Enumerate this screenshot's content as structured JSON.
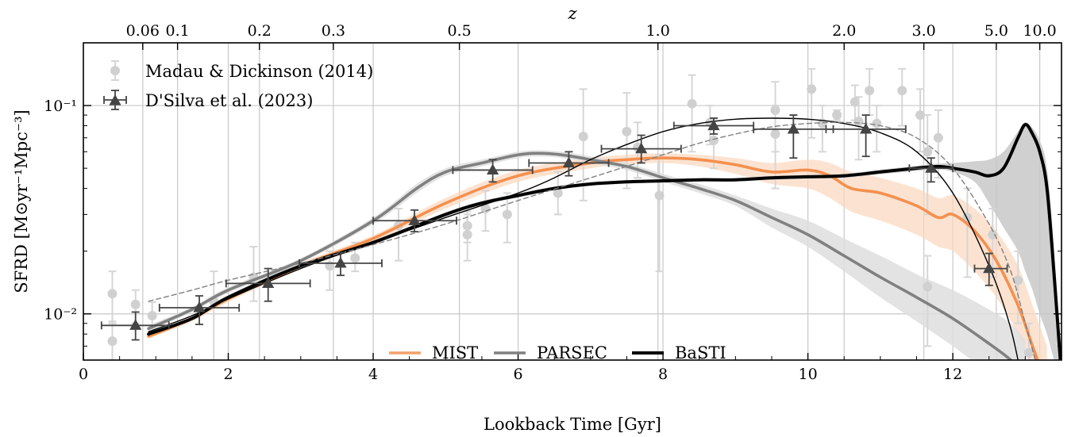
{
  "chart_data": {
    "type": "line",
    "xlabel": "Lookback Time [Gyr]",
    "ylabel": "SFRD [M⊙yr⁻¹Mpc⁻³]",
    "top_axis_label": "z",
    "xlim": [
      0,
      13.5
    ],
    "ylim": [
      0.006,
      0.2
    ],
    "yscale": "log",
    "grid": true,
    "x_ticks": [
      0,
      2,
      4,
      6,
      8,
      10,
      12
    ],
    "x_tick_labels": [
      "0",
      "2",
      "4",
      "6",
      "8",
      "10",
      "12"
    ],
    "y_ticks": [
      0.01,
      0.1
    ],
    "y_tick_labels": [
      "10⁻²",
      "10⁻¹"
    ],
    "top_ticks": [
      {
        "label": "0.06",
        "t": 0.82
      },
      {
        "label": "0.1",
        "t": 1.3
      },
      {
        "label": "0.2",
        "t": 2.43
      },
      {
        "label": "0.3",
        "t": 3.45
      },
      {
        "label": "0.5",
        "t": 5.19
      },
      {
        "label": "1.0",
        "t": 7.93
      },
      {
        "label": "2.0",
        "t": 10.5
      },
      {
        "label": "3.0",
        "t": 11.6
      },
      {
        "label": "5.0",
        "t": 12.6
      },
      {
        "label": "10.0",
        "t": 13.2
      }
    ],
    "legend_top": {
      "position": "top-left",
      "entries": [
        {
          "label": "Madau & Dickinson (2014)",
          "marker": "circle",
          "color": "#d0d0d0"
        },
        {
          "label": "D'Silva et al. (2023)",
          "marker": "triangle",
          "color": "#444444"
        }
      ]
    },
    "legend_bottom": {
      "position": "bottom-center",
      "entries": [
        {
          "label": "MIST",
          "color": "#f4a06a"
        },
        {
          "label": "PARSEC",
          "color": "#808080"
        },
        {
          "label": "BaSTI",
          "color": "#000000"
        }
      ]
    },
    "series": [
      {
        "name": "MIST",
        "color": "#f4904f",
        "band_color": "#fbd7bd",
        "x": [
          0.9,
          1.5,
          2.0,
          3.0,
          4.0,
          5.0,
          6.0,
          7.0,
          7.5,
          8.0,
          8.5,
          9.0,
          9.5,
          10.0,
          10.3,
          10.6,
          11.0,
          11.5,
          11.8,
          12.0,
          12.3,
          12.6,
          12.9,
          13.1,
          13.3
        ],
        "y": [
          0.0078,
          0.0095,
          0.0118,
          0.017,
          0.023,
          0.034,
          0.046,
          0.053,
          0.055,
          0.056,
          0.055,
          0.052,
          0.048,
          0.049,
          0.046,
          0.04,
          0.038,
          0.033,
          0.029,
          0.03,
          0.025,
          0.018,
          0.011,
          0.007,
          0.0045
        ],
        "band_lower": [
          0.0076,
          0.0092,
          0.0114,
          0.0164,
          0.0222,
          0.032,
          0.043,
          0.05,
          0.052,
          0.053,
          0.051,
          0.047,
          0.042,
          0.04,
          0.036,
          0.031,
          0.028,
          0.024,
          0.021,
          0.02,
          0.016,
          0.012,
          0.008,
          0.0055,
          0.004
        ],
        "band_upper": [
          0.0081,
          0.0098,
          0.0122,
          0.0176,
          0.0238,
          0.036,
          0.049,
          0.056,
          0.058,
          0.059,
          0.058,
          0.056,
          0.053,
          0.055,
          0.053,
          0.048,
          0.045,
          0.04,
          0.036,
          0.037,
          0.032,
          0.025,
          0.017,
          0.011,
          0.007
        ]
      },
      {
        "name": "PARSEC",
        "color": "#808080",
        "band_color": "#dedede",
        "x": [
          0.9,
          1.5,
          2.0,
          3.0,
          4.0,
          4.6,
          5.0,
          5.5,
          6.0,
          6.3,
          6.6,
          7.0,
          7.5,
          8.0,
          8.5,
          9.0,
          9.5,
          10.0,
          10.5,
          11.0,
          11.5,
          12.0,
          12.5,
          12.8,
          13.0
        ],
        "y": [
          0.0085,
          0.0105,
          0.013,
          0.018,
          0.028,
          0.04,
          0.048,
          0.053,
          0.058,
          0.059,
          0.058,
          0.055,
          0.051,
          0.045,
          0.04,
          0.035,
          0.029,
          0.024,
          0.019,
          0.015,
          0.012,
          0.0095,
          0.0072,
          0.006,
          0.005
        ],
        "band_lower": [
          0.0082,
          0.0102,
          0.0126,
          0.0175,
          0.027,
          0.038,
          0.046,
          0.051,
          0.056,
          0.057,
          0.056,
          0.053,
          0.049,
          0.043,
          0.038,
          0.033,
          0.026,
          0.021,
          0.016,
          0.012,
          0.0092,
          0.007,
          0.0052,
          0.0045,
          0.004
        ],
        "band_upper": [
          0.0088,
          0.0108,
          0.0134,
          0.0185,
          0.029,
          0.042,
          0.05,
          0.055,
          0.06,
          0.061,
          0.06,
          0.057,
          0.053,
          0.047,
          0.042,
          0.037,
          0.032,
          0.028,
          0.023,
          0.019,
          0.0155,
          0.013,
          0.0105,
          0.009,
          0.0075
        ]
      },
      {
        "name": "BaSTI",
        "color": "#000000",
        "band_color": "#c8c8c8",
        "x": [
          0.9,
          1.5,
          2.0,
          3.0,
          4.0,
          5.0,
          5.5,
          6.0,
          6.5,
          7.0,
          7.5,
          8.0,
          8.5,
          9.0,
          9.5,
          10.0,
          10.5,
          11.0,
          11.5,
          11.8,
          12.0,
          12.3,
          12.5,
          12.7,
          12.9,
          13.0,
          13.1,
          13.2,
          13.3,
          13.4,
          13.5
        ],
        "y": [
          0.008,
          0.0095,
          0.012,
          0.017,
          0.022,
          0.03,
          0.034,
          0.037,
          0.04,
          0.042,
          0.043,
          0.0435,
          0.044,
          0.044,
          0.045,
          0.0455,
          0.046,
          0.048,
          0.05,
          0.051,
          0.05,
          0.048,
          0.046,
          0.05,
          0.07,
          0.081,
          0.073,
          0.06,
          0.04,
          0.015,
          0.005
        ],
        "band_lower": [
          0.0078,
          0.0093,
          0.0117,
          0.0166,
          0.0215,
          0.0293,
          0.0332,
          0.0362,
          0.0392,
          0.0412,
          0.0422,
          0.0427,
          0.0432,
          0.0432,
          0.0441,
          0.0446,
          0.045,
          0.0468,
          0.0486,
          0.0494,
          0.048,
          0.043,
          0.034,
          0.026,
          0.02,
          0.016,
          0.013,
          0.01,
          0.008,
          0.006,
          0.005
        ],
        "band_upper": [
          0.0082,
          0.0097,
          0.0123,
          0.0174,
          0.0225,
          0.0307,
          0.0348,
          0.0378,
          0.0408,
          0.0428,
          0.0438,
          0.0443,
          0.0448,
          0.0448,
          0.0459,
          0.0464,
          0.047,
          0.0492,
          0.0514,
          0.0526,
          0.053,
          0.054,
          0.055,
          0.06,
          0.075,
          0.083,
          0.078,
          0.068,
          0.05,
          0.02,
          0.006
        ]
      },
      {
        "name": "",
        "style": "thin-solid",
        "color": "#000000",
        "x": [
          0.9,
          1.5,
          2.0,
          3.0,
          4.0,
          5.0,
          6.0,
          6.5,
          7.0,
          7.5,
          8.0,
          8.5,
          9.0,
          9.5,
          10.0,
          10.5,
          11.0,
          11.5,
          12.0,
          12.5,
          12.8,
          13.0
        ],
        "y": [
          0.0082,
          0.0098,
          0.0118,
          0.0165,
          0.022,
          0.029,
          0.038,
          0.045,
          0.055,
          0.065,
          0.075,
          0.082,
          0.086,
          0.087,
          0.086,
          0.082,
          0.074,
          0.06,
          0.038,
          0.017,
          0.0085,
          0.004
        ]
      },
      {
        "name": "",
        "style": "thin-dashed",
        "color": "#808080",
        "x": [
          0.9,
          1.5,
          2.0,
          3.0,
          4.0,
          5.0,
          6.0,
          7.0,
          8.0,
          8.5,
          9.0,
          9.5,
          10.0,
          10.5,
          11.0,
          11.5,
          12.0,
          12.5,
          12.8,
          13.0,
          13.2
        ],
        "y": [
          0.0115,
          0.013,
          0.0145,
          0.0175,
          0.0215,
          0.027,
          0.035,
          0.045,
          0.058,
          0.066,
          0.073,
          0.079,
          0.082,
          0.083,
          0.08,
          0.07,
          0.05,
          0.027,
          0.016,
          0.009,
          0.005
        ]
      }
    ],
    "scatter_md14": {
      "name": "Madau & Dickinson (2014)",
      "points": [
        {
          "x": 0.4,
          "y": 0.0125,
          "lo": 0.009,
          "hi": 0.016
        },
        {
          "x": 0.4,
          "y": 0.0074,
          "lo": 0.006,
          "hi": 0.0092
        },
        {
          "x": 0.72,
          "y": 0.0111,
          "lo": 0.009,
          "hi": 0.013
        },
        {
          "x": 0.95,
          "y": 0.0098,
          "lo": 0.0085,
          "hi": 0.0114
        },
        {
          "x": 1.8,
          "y": 0.0115,
          "lo": 0.006,
          "hi": 0.016
        },
        {
          "x": 2.35,
          "y": 0.015,
          "lo": 0.0115,
          "hi": 0.021
        },
        {
          "x": 3.4,
          "y": 0.017,
          "lo": 0.013,
          "hi": 0.02
        },
        {
          "x": 3.75,
          "y": 0.0185,
          "lo": 0.016,
          "hi": 0.022
        },
        {
          "x": 4.35,
          "y": 0.0265,
          "lo": 0.018,
          "hi": 0.032
        },
        {
          "x": 5.3,
          "y": 0.0265,
          "lo": 0.022,
          "hi": 0.031
        },
        {
          "x": 5.3,
          "y": 0.024,
          "lo": 0.018,
          "hi": 0.03
        },
        {
          "x": 5.55,
          "y": 0.032,
          "lo": 0.025,
          "hi": 0.039
        },
        {
          "x": 5.85,
          "y": 0.03,
          "lo": 0.022,
          "hi": 0.038
        },
        {
          "x": 6.55,
          "y": 0.038,
          "lo": 0.03,
          "hi": 0.048
        },
        {
          "x": 6.9,
          "y": 0.071,
          "lo": 0.035,
          "hi": 0.12
        },
        {
          "x": 7.5,
          "y": 0.075,
          "lo": 0.04,
          "hi": 0.115
        },
        {
          "x": 7.65,
          "y": 0.063,
          "lo": 0.045,
          "hi": 0.083
        },
        {
          "x": 7.95,
          "y": 0.037,
          "lo": 0.016,
          "hi": 0.058
        },
        {
          "x": 8.4,
          "y": 0.102,
          "lo": 0.06,
          "hi": 0.14
        },
        {
          "x": 8.65,
          "y": 0.083,
          "lo": 0.065,
          "hi": 0.1
        },
        {
          "x": 8.7,
          "y": 0.068,
          "lo": 0.05,
          "hi": 0.086
        },
        {
          "x": 9.55,
          "y": 0.095,
          "lo": 0.06,
          "hi": 0.13
        },
        {
          "x": 9.55,
          "y": 0.073,
          "lo": 0.04,
          "hi": 0.1
        },
        {
          "x": 10.05,
          "y": 0.12,
          "lo": 0.07,
          "hi": 0.15
        },
        {
          "x": 10.2,
          "y": 0.082,
          "lo": 0.06,
          "hi": 0.1
        },
        {
          "x": 10.4,
          "y": 0.09,
          "lo": 0.085,
          "hi": 0.095
        },
        {
          "x": 10.65,
          "y": 0.104,
          "lo": 0.085,
          "hi": 0.125
        },
        {
          "x": 10.7,
          "y": 0.084,
          "lo": 0.055,
          "hi": 0.11
        },
        {
          "x": 10.85,
          "y": 0.118,
          "lo": 0.09,
          "hi": 0.15
        },
        {
          "x": 10.95,
          "y": 0.082,
          "lo": 0.06,
          "hi": 0.1
        },
        {
          "x": 11.3,
          "y": 0.118,
          "lo": 0.08,
          "hi": 0.15
        },
        {
          "x": 11.55,
          "y": 0.09,
          "lo": 0.06,
          "hi": 0.12
        },
        {
          "x": 11.65,
          "y": 0.06,
          "lo": 0.03,
          "hi": 0.09
        },
        {
          "x": 11.65,
          "y": 0.0135,
          "lo": 0.007,
          "hi": 0.019
        },
        {
          "x": 11.8,
          "y": 0.07,
          "lo": 0.045,
          "hi": 0.095
        },
        {
          "x": 12.2,
          "y": 0.029,
          "lo": 0.015,
          "hi": 0.04
        },
        {
          "x": 12.55,
          "y": 0.024,
          "lo": 0.015,
          "hi": 0.032
        },
        {
          "x": 12.9,
          "y": 0.0145,
          "lo": 0.009,
          "hi": 0.02
        },
        {
          "x": 13.05,
          "y": 0.0065,
          "lo": 0.004,
          "hi": 0.009
        }
      ]
    },
    "scatter_dsilva": {
      "name": "D'Silva et al. (2023)",
      "points": [
        {
          "x": 0.72,
          "y": 0.0088,
          "xlo": 0.25,
          "xhi": 1.18,
          "lo": 0.0075,
          "hi": 0.0102
        },
        {
          "x": 1.6,
          "y": 0.0107,
          "xlo": 1.05,
          "xhi": 2.15,
          "lo": 0.0089,
          "hi": 0.0122
        },
        {
          "x": 2.55,
          "y": 0.014,
          "xlo": 1.97,
          "xhi": 3.13,
          "lo": 0.0115,
          "hi": 0.0165
        },
        {
          "x": 3.55,
          "y": 0.0175,
          "xlo": 2.98,
          "xhi": 4.12,
          "lo": 0.0153,
          "hi": 0.0197
        },
        {
          "x": 4.57,
          "y": 0.028,
          "xlo": 4.0,
          "xhi": 5.15,
          "lo": 0.0248,
          "hi": 0.0315
        },
        {
          "x": 5.65,
          "y": 0.049,
          "xlo": 5.1,
          "xhi": 6.2,
          "lo": 0.043,
          "hi": 0.055
        },
        {
          "x": 6.7,
          "y": 0.053,
          "xlo": 6.15,
          "xhi": 7.25,
          "lo": 0.046,
          "hi": 0.06
        },
        {
          "x": 7.7,
          "y": 0.062,
          "xlo": 7.15,
          "xhi": 8.25,
          "lo": 0.053,
          "hi": 0.072
        },
        {
          "x": 8.7,
          "y": 0.08,
          "xlo": 8.15,
          "xhi": 9.25,
          "lo": 0.073,
          "hi": 0.087
        },
        {
          "x": 9.8,
          "y": 0.077,
          "xlo": 9.25,
          "xhi": 10.35,
          "lo": 0.056,
          "hi": 0.09
        },
        {
          "x": 10.8,
          "y": 0.077,
          "xlo": 10.25,
          "xhi": 11.35,
          "lo": 0.057,
          "hi": 0.09
        },
        {
          "x": 11.7,
          "y": 0.05,
          "xlo": 11.4,
          "xhi": 12.0,
          "lo": 0.043,
          "hi": 0.056
        },
        {
          "x": 12.5,
          "y": 0.0165,
          "xlo": 12.3,
          "xhi": 12.75,
          "lo": 0.0137,
          "hi": 0.0195
        }
      ]
    }
  }
}
